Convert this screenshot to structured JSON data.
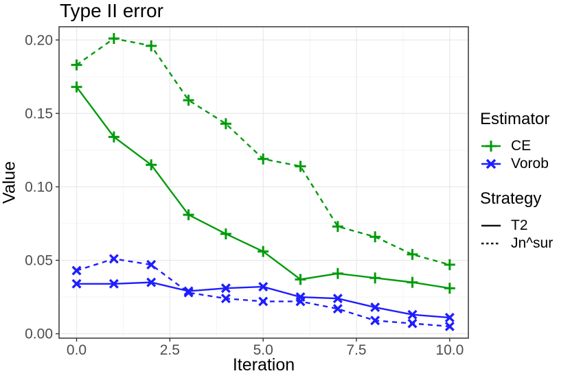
{
  "title": "Type II error",
  "axes": {
    "x_label": "Iteration",
    "y_label": "Value"
  },
  "colors": {
    "ce_green": "#009B0B",
    "vorob_blue": "#1E1EFF",
    "tick_label_gray": "#4D4D4D",
    "panel_border": "#333333",
    "grid_major": "#E8E8E8",
    "grid_minor": "#F3F3F3",
    "legend_line_black": "#111111"
  },
  "legend": {
    "estimator": {
      "title": "Estimator",
      "items": [
        {
          "label": "CE",
          "color": "#009B0B",
          "marker": "plus",
          "dash": "solid"
        },
        {
          "label": "Vorob",
          "color": "#1E1EFF",
          "marker": "cross",
          "dash": "solid"
        }
      ]
    },
    "strategy": {
      "title": "Strategy",
      "items": [
        {
          "label": "T2",
          "dash": "solid"
        },
        {
          "label": "Jn^sur",
          "dash": "dashed"
        }
      ]
    }
  },
  "chart_data": {
    "type": "line",
    "title": "Type II error",
    "xlabel": "Iteration",
    "ylabel": "Value",
    "x": [
      0,
      1,
      2,
      3,
      4,
      5,
      6,
      7,
      8,
      9,
      10
    ],
    "series": [
      {
        "name": "CE-T2",
        "estimator": "CE",
        "strategy": "T2",
        "color": "#009B0B",
        "dash": "solid",
        "marker": "plus",
        "values": [
          0.168,
          0.134,
          0.115,
          0.081,
          0.068,
          0.056,
          0.037,
          0.041,
          0.038,
          0.035,
          0.031
        ]
      },
      {
        "name": "CE-Jn^sur",
        "estimator": "CE",
        "strategy": "Jn^sur",
        "color": "#009B0B",
        "dash": "dashed",
        "marker": "plus",
        "values": [
          0.183,
          0.201,
          0.196,
          0.159,
          0.143,
          0.119,
          0.114,
          0.073,
          0.066,
          0.054,
          0.047
        ]
      },
      {
        "name": "Vorob-T2",
        "estimator": "Vorob",
        "strategy": "T2",
        "color": "#1E1EFF",
        "dash": "solid",
        "marker": "cross",
        "values": [
          0.034,
          0.034,
          0.035,
          0.029,
          0.031,
          0.032,
          0.025,
          0.024,
          0.018,
          0.013,
          0.011
        ]
      },
      {
        "name": "Vorob-Jn^sur",
        "estimator": "Vorob",
        "strategy": "Jn^sur",
        "color": "#1E1EFF",
        "dash": "dashed",
        "marker": "cross",
        "values": [
          0.043,
          0.051,
          0.047,
          0.028,
          0.024,
          0.022,
          0.022,
          0.017,
          0.009,
          0.007,
          0.005
        ]
      }
    ],
    "x_ticks": {
      "values": [
        0,
        2.5,
        5,
        7.5,
        10
      ],
      "labels": [
        "0.0",
        "2.5",
        "5.0",
        "7.5",
        "10.0"
      ]
    },
    "y_ticks": {
      "values": [
        0,
        0.05,
        0.1,
        0.15,
        0.2
      ],
      "labels": [
        "0.00",
        "0.05",
        "0.10",
        "0.15",
        "0.20"
      ]
    },
    "x_minor": [
      1.25,
      3.75,
      6.25,
      8.75
    ],
    "y_minor": [
      0.025,
      0.075,
      0.125,
      0.175
    ],
    "xlim": [
      -0.47,
      10.5
    ],
    "ylim": [
      -0.003,
      0.209
    ],
    "grid": "major+minor",
    "legend_position": "right"
  }
}
